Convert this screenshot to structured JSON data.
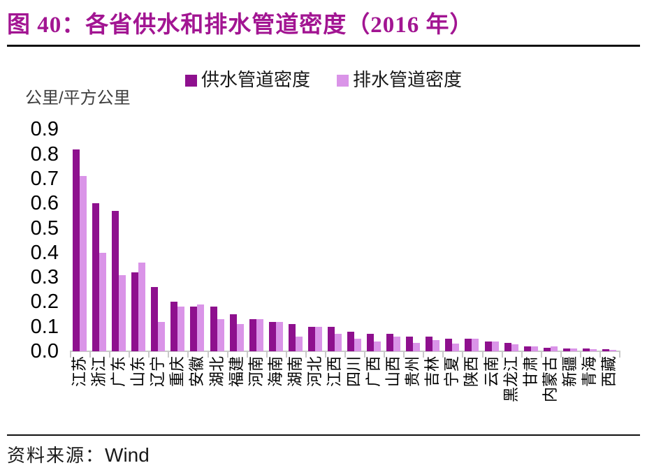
{
  "header": {
    "title": "图 40：各省供水和排水管道密度（2016 年）"
  },
  "footer": {
    "source_prefix": "资料来源：",
    "source_value": "Wind"
  },
  "colors": {
    "title": "#A21592",
    "supply_bar": "#8E108E",
    "drainage_bar": "#DA94E8",
    "axis": "#C9C9C9",
    "rule": "#111111"
  },
  "chart_data": {
    "type": "bar",
    "title": "各省供水和排水管道密度（2016 年）",
    "unit_label": "公里/平方公里",
    "xlabel": "",
    "ylabel": "公里/平方公里",
    "ylim": [
      0,
      0.9
    ],
    "yticks": [
      "0.9",
      "0.8",
      "0.7",
      "0.6",
      "0.5",
      "0.4",
      "0.3",
      "0.2",
      "0.1",
      "0.0"
    ],
    "grid": false,
    "legend_position": "top",
    "categories": [
      "江苏",
      "浙江",
      "广东",
      "山东",
      "辽宁",
      "重庆",
      "安徽",
      "湖北",
      "福建",
      "河南",
      "海南",
      "湖南",
      "河北",
      "江西",
      "四川",
      "广西",
      "山西",
      "贵州",
      "吉林",
      "宁夏",
      "陕西",
      "云南",
      "黑龙江",
      "甘肃",
      "内蒙古",
      "新疆",
      "青海",
      "西藏"
    ],
    "series": [
      {
        "name": "供水管道密度",
        "color": "#8E108E",
        "values": [
          0.82,
          0.6,
          0.57,
          0.32,
          0.26,
          0.2,
          0.18,
          0.18,
          0.15,
          0.13,
          0.12,
          0.11,
          0.1,
          0.1,
          0.08,
          0.07,
          0.07,
          0.06,
          0.06,
          0.05,
          0.05,
          0.04,
          0.035,
          0.02,
          0.015,
          0.012,
          0.01,
          0.008
        ]
      },
      {
        "name": "排水管道密度",
        "color": "#DA94E8",
        "values": [
          0.71,
          0.4,
          0.31,
          0.36,
          0.12,
          0.18,
          0.19,
          0.13,
          0.11,
          0.13,
          0.12,
          0.06,
          0.1,
          0.07,
          0.05,
          0.04,
          0.06,
          0.035,
          0.045,
          0.03,
          0.05,
          0.04,
          0.028,
          0.02,
          0.02,
          0.012,
          0.008,
          0.005
        ]
      }
    ]
  }
}
